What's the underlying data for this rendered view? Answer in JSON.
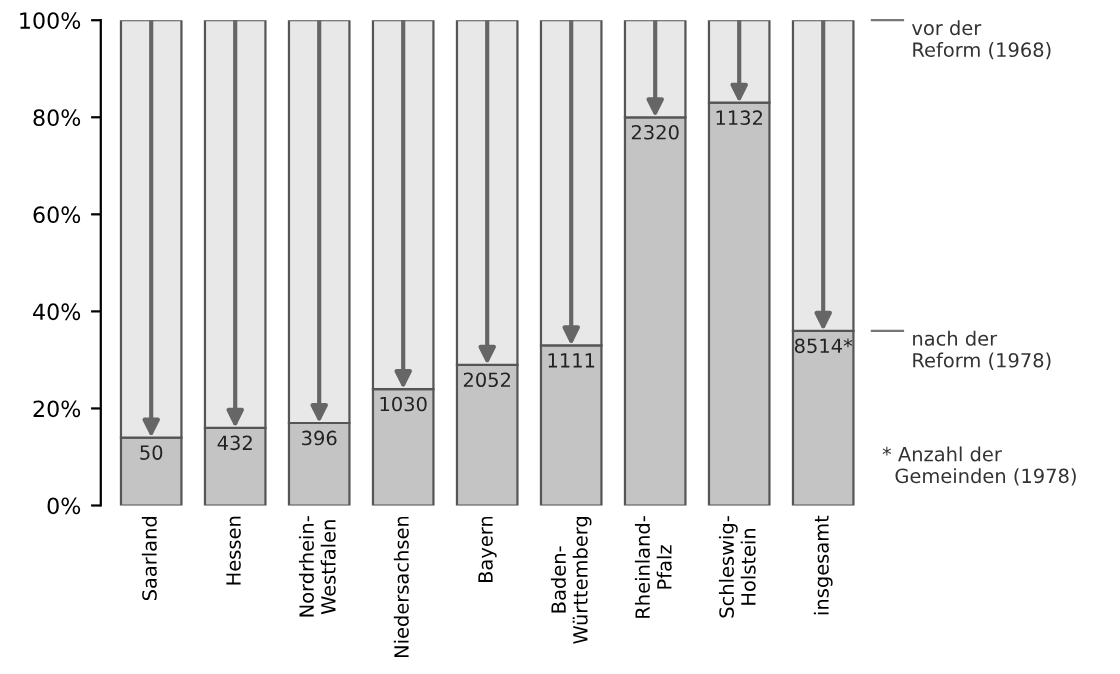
{
  "chart_data": {
    "type": "bar",
    "stacked": true,
    "categories": [
      "Saarland",
      "Hessen",
      "Nordrhein-\nWestfalen",
      "Niedersachsen",
      "Bayern",
      "Baden-\nWürttemberg",
      "Rheinland-\nPfalz",
      "Schleswig-\nHolstein",
      "insgesamt"
    ],
    "series": [
      {
        "color": "#c4c4c4",
        "values": [
          14,
          16,
          17,
          24,
          29,
          33,
          80,
          83,
          36
        ]
      },
      {
        "color": "#e8e8e8",
        "values": [
          86,
          84,
          83,
          76,
          71,
          67,
          20,
          17,
          64
        ]
      }
    ],
    "ylim": [
      0,
      100
    ],
    "yticks": [
      {
        "value": 0,
        "label": "0%"
      },
      {
        "value": 20,
        "label": "20%"
      },
      {
        "value": 40,
        "label": "40%"
      },
      {
        "value": 60,
        "label": "60%"
      },
      {
        "value": 80,
        "label": "80%"
      },
      {
        "value": 100,
        "label": "100%"
      }
    ],
    "grid": false,
    "legend": false,
    "annotations": [
      {
        "text": "50",
        "x": "Saarland",
        "y": 14
      },
      {
        "text": "432",
        "x": "Hessen",
        "y": 16
      },
      {
        "text": "396",
        "x": "Nordrhein-\nWestfalen",
        "y": 17
      },
      {
        "text": "1030",
        "x": "Niedersachsen",
        "y": 24
      },
      {
        "text": "2052",
        "x": "Bayern",
        "y": 29
      },
      {
        "text": "1111",
        "x": "Baden-\nWürttemberg",
        "y": 33
      },
      {
        "text": "2320",
        "x": "Rheinland-\nPfalz",
        "y": 80
      },
      {
        "text": "1132",
        "x": "Schleswig-\nHolstein",
        "y": 83
      },
      {
        "text": "8514*",
        "x": "insgesamt",
        "y": 36
      },
      "vor der\nReform (1968)",
      "nach der\nReform (1978)",
      "* Anzahl der\n  Gemeinden (1978)"
    ]
  }
}
